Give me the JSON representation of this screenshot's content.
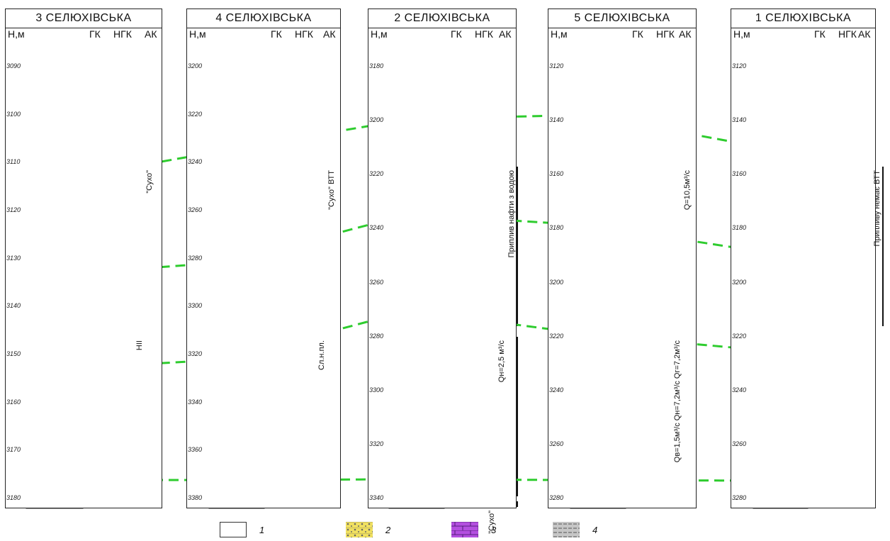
{
  "wells": [
    {
      "title": "3 СЕЛЮХІВСЬКА",
      "h": "H,м",
      "logs": [
        "ГК",
        "НГК",
        "АК"
      ],
      "ticks": [
        "3090",
        "3100",
        "3110",
        "3120",
        "3130",
        "3140",
        "3150",
        "3160",
        "3170",
        "3180"
      ],
      "labels": [
        "\"Сухо\"",
        "НІІ"
      ]
    },
    {
      "title": "4 СЕЛЮХІВСЬКА",
      "h": "H,м",
      "logs": [
        "ГК",
        "НГК",
        "АК"
      ],
      "ticks": [
        "3200",
        "3220",
        "3240",
        "3260",
        "3280",
        "3300",
        "3320",
        "3340",
        "3360",
        "3380"
      ],
      "labels": [
        "\"Сухо\" ВТТ",
        "Сл.н.пл."
      ]
    },
    {
      "title": "2 СЕЛЮХІВСЬКА",
      "h": "H,м",
      "logs": [
        "ГК",
        "НГК",
        "АК"
      ],
      "ticks": [
        "3180",
        "3200",
        "3220",
        "3240",
        "3260",
        "3280",
        "3300",
        "3320",
        "3340"
      ],
      "labels": [
        "Приплив нафти з водою",
        "Qн=2,5 м³/с",
        "\"Сухо\""
      ]
    },
    {
      "title": "5 СЕЛЮХІВСЬКА",
      "h": "H,м",
      "logs": [
        "ГК",
        "НГК",
        "АК"
      ],
      "ticks": [
        "3120",
        "3140",
        "3160",
        "3180",
        "3200",
        "3220",
        "3240",
        "3260",
        "3280"
      ],
      "labels": [
        "Q=10,5м³/с",
        "Qв=1,5м³/с Qн=7,2м³/с Qг=7,2м³/с"
      ]
    },
    {
      "title": "1 СЕЛЮХІВСЬКА",
      "h": "H,м",
      "logs": [
        "ГК",
        "НГК",
        "АК"
      ],
      "ticks": [
        "3120",
        "3140",
        "3160",
        "3180",
        "3200",
        "3220",
        "3240",
        "3260",
        "3280"
      ],
      "labels": [
        "Припливу немає ВТТ"
      ]
    }
  ],
  "legend": [
    {
      "key": "1",
      "pattern": "empty"
    },
    {
      "key": "2",
      "pattern": "sandstone"
    },
    {
      "key": "3",
      "pattern": "limestone"
    },
    {
      "key": "4",
      "pattern": "clay"
    }
  ],
  "colors": {
    "correlation": "#2ecc2e",
    "limestone": "#b44fe0",
    "sandstone": "#f0e060",
    "clay": "#c6c6c6",
    "gk": "#d62020",
    "ngk": "#111111",
    "ak": "#2040d0"
  }
}
